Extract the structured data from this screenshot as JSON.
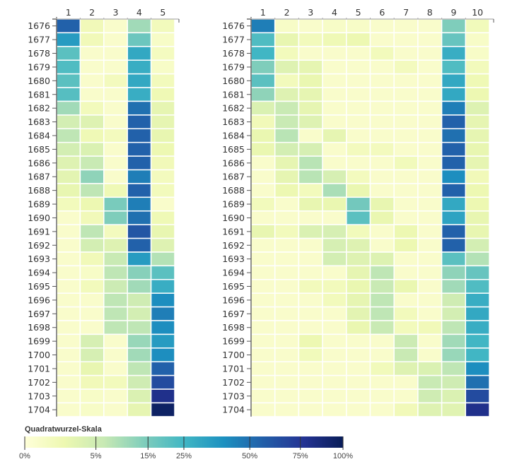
{
  "chart_data": [
    {
      "type": "heatmap",
      "title": "",
      "xlabel": "",
      "ylabel": "",
      "x": [
        "1",
        "2",
        "3",
        "4",
        "5"
      ],
      "y": [
        "1676",
        "1677",
        "1678",
        "1679",
        "1680",
        "1681",
        "1682",
        "1683",
        "1684",
        "1685",
        "1686",
        "1687",
        "1688",
        "1689",
        "1690",
        "1691",
        "1692",
        "1693",
        "1694",
        "1695",
        "1696",
        "1697",
        "1698",
        "1699",
        "1700",
        "1701",
        "1702",
        "1703",
        "1704"
      ],
      "x_axis_position": "top",
      "values_unit": "percent",
      "values": [
        [
          55,
          1.0,
          0.2,
          10,
          0.8
        ],
        [
          35,
          1.0,
          0.2,
          17,
          0.3
        ],
        [
          20,
          0.2,
          0.2,
          30,
          0.6
        ],
        [
          22,
          0.2,
          0.2,
          28,
          0.3
        ],
        [
          20,
          0.2,
          0.7,
          30,
          0.8
        ],
        [
          21,
          0.2,
          0.2,
          28,
          1.3
        ],
        [
          10,
          0.8,
          0.2,
          50,
          2.2
        ],
        [
          4.5,
          3.0,
          0.2,
          55,
          2.2
        ],
        [
          7,
          1.2,
          0.7,
          55,
          2.0
        ],
        [
          4.5,
          3.5,
          0.2,
          55,
          1.5
        ],
        [
          3.0,
          6.0,
          0.2,
          55,
          1.0
        ],
        [
          2.5,
          12,
          0.2,
          45,
          0.7
        ],
        [
          2.0,
          7,
          1.2,
          55,
          0.8
        ],
        [
          0.8,
          1.5,
          15,
          45,
          0.2
        ],
        [
          0.2,
          1.0,
          14,
          50,
          1.2
        ],
        [
          0.2,
          7,
          0.7,
          60,
          2.0
        ],
        [
          0.2,
          4.5,
          3.0,
          55,
          3.0
        ],
        [
          0.2,
          1.0,
          6,
          35,
          8
        ],
        [
          0.2,
          0.3,
          7,
          13,
          20
        ],
        [
          0.2,
          0.8,
          5.5,
          10,
          28
        ],
        [
          0.2,
          0.2,
          7,
          5,
          40
        ],
        [
          0.2,
          0.2,
          7,
          4.5,
          45
        ],
        [
          0.2,
          0.2,
          7,
          7,
          40
        ],
        [
          0.2,
          4.0,
          0.2,
          11,
          35
        ],
        [
          0.2,
          4.0,
          0.2,
          10,
          40
        ],
        [
          0.2,
          2.0,
          0.2,
          7,
          55
        ],
        [
          0.2,
          1.0,
          0.8,
          5,
          65
        ],
        [
          0.2,
          0.3,
          0.2,
          3.5,
          80
        ],
        [
          0.2,
          0.3,
          0.2,
          2.2,
          95
        ]
      ]
    },
    {
      "type": "heatmap",
      "title": "",
      "xlabel": "",
      "ylabel": "",
      "x": [
        "1",
        "2",
        "3",
        "4",
        "5",
        "6",
        "7",
        "8",
        "9",
        "10"
      ],
      "y": [
        "1676",
        "1677",
        "1678",
        "1679",
        "1680",
        "1681",
        "1682",
        "1683",
        "1684",
        "1685",
        "1686",
        "1687",
        "1688",
        "1689",
        "1690",
        "1691",
        "1692",
        "1693",
        "1694",
        "1695",
        "1696",
        "1697",
        "1698",
        "1699",
        "1700",
        "1701",
        "1702",
        "1703",
        "1704"
      ],
      "x_axis_position": "top",
      "values_unit": "percent",
      "values": [
        [
          45,
          0.3,
          0.2,
          0.3,
          0.3,
          0.2,
          0.2,
          0.2,
          14,
          0.9
        ],
        [
          22,
          2.0,
          0.8,
          1.2,
          1.5,
          0.2,
          0.2,
          0.2,
          18,
          0.3
        ],
        [
          25,
          0.8,
          0.2,
          0.2,
          0.2,
          0.8,
          0.2,
          0.2,
          28,
          0.3
        ],
        [
          14,
          3.0,
          2.2,
          0.2,
          0.2,
          0.2,
          0.7,
          0.2,
          22,
          0.8
        ],
        [
          20,
          0.8,
          1.8,
          0.2,
          0.2,
          0.2,
          0.2,
          0.2,
          30,
          1.3
        ],
        [
          12,
          3.0,
          2.2,
          0.2,
          0.2,
          0.2,
          0.2,
          0.2,
          30,
          1.5
        ],
        [
          3.5,
          6,
          2.2,
          0.2,
          0.2,
          0.2,
          0.2,
          0.2,
          45,
          3.2
        ],
        [
          1.0,
          6,
          3.0,
          0.2,
          0.2,
          0.2,
          0.2,
          0.2,
          55,
          2.2
        ],
        [
          1.8,
          7.5,
          0.2,
          2.2,
          0.2,
          0.2,
          0.2,
          0.2,
          50,
          2.2
        ],
        [
          1.8,
          4.5,
          4.0,
          0.2,
          0.7,
          0.7,
          0.2,
          0.2,
          55,
          2.0
        ],
        [
          0.2,
          2.2,
          7.5,
          0.2,
          0.2,
          0.2,
          0.9,
          0.2,
          55,
          2.2
        ],
        [
          0.2,
          2.2,
          7.5,
          4.0,
          0.7,
          0.2,
          0.2,
          0.2,
          40,
          1.0
        ],
        [
          0.2,
          1.5,
          0.8,
          9,
          1.8,
          0.2,
          0.2,
          0.2,
          55,
          1.5
        ],
        [
          0.8,
          0.2,
          2.0,
          1.8,
          16,
          2.0,
          0.2,
          0.2,
          30,
          1.5
        ],
        [
          0.2,
          0.2,
          0.2,
          0.2,
          20,
          1.8,
          0.2,
          0.2,
          32,
          2.0
        ],
        [
          2.0,
          0.8,
          3.5,
          4.0,
          0.9,
          0.2,
          1.5,
          0.2,
          55,
          2.0
        ],
        [
          0.2,
          0.2,
          0.2,
          4.0,
          3.0,
          0.2,
          1.5,
          0.2,
          55,
          4.5
        ],
        [
          0.2,
          0.2,
          0.2,
          4.5,
          3.0,
          3.2,
          0.2,
          0.2,
          20,
          8
        ],
        [
          0.2,
          0.2,
          0.2,
          0.2,
          2.2,
          7,
          0.2,
          0.2,
          12,
          18
        ],
        [
          0.2,
          0.2,
          0.8,
          0.8,
          1.8,
          6,
          1.8,
          0.2,
          10,
          22
        ],
        [
          0.2,
          0.2,
          0.2,
          0.8,
          2.2,
          7,
          0.2,
          0.2,
          5,
          28
        ],
        [
          0.2,
          0.2,
          0.2,
          0.2,
          2.5,
          7,
          0.8,
          0.2,
          4.5,
          30
        ],
        [
          0.2,
          0.2,
          0.2,
          0.2,
          1.8,
          6,
          0.8,
          1.0,
          7,
          28
        ],
        [
          0.2,
          0.2,
          1.5,
          0.2,
          0.2,
          0.2,
          5.5,
          0.2,
          10,
          25
        ],
        [
          0.2,
          0.2,
          0.9,
          0.2,
          0.2,
          0.2,
          6,
          0.2,
          11,
          25
        ],
        [
          0.2,
          0.2,
          0.2,
          0.2,
          0.2,
          0.9,
          3.0,
          3.5,
          7,
          40
        ],
        [
          0.2,
          0.2,
          0.2,
          0.2,
          0.2,
          0.2,
          0.2,
          6,
          5,
          50
        ],
        [
          0.2,
          0.2,
          0.2,
          0.2,
          0.2,
          0.2,
          0.2,
          5,
          3.5,
          65
        ],
        [
          0.2,
          0.2,
          0.2,
          0.2,
          0.2,
          0.2,
          1.0,
          3.0,
          2.8,
          80
        ]
      ]
    }
  ],
  "legend": {
    "title": "Quadratwurzel-Skala",
    "scale": "sqrt",
    "domain": [
      0,
      100
    ],
    "ticks": [
      {
        "value": 0,
        "label": "0%"
      },
      {
        "value": 5,
        "label": "5%"
      },
      {
        "value": 15,
        "label": "15%"
      },
      {
        "value": 25,
        "label": "25%"
      },
      {
        "value": 50,
        "label": "50%"
      },
      {
        "value": 75,
        "label": "75%"
      },
      {
        "value": 100,
        "label": "100%"
      }
    ],
    "color_scheme": [
      "#ffffd9",
      "#edf8b1",
      "#c7e9b4",
      "#7fcdbb",
      "#41b6c4",
      "#1d91c0",
      "#225ea8",
      "#253494",
      "#081d58"
    ]
  }
}
